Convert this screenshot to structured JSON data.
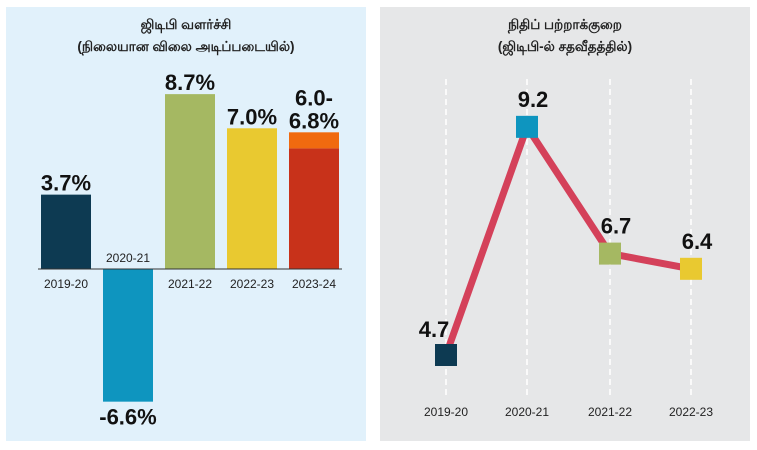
{
  "chart_data": [
    {
      "type": "bar",
      "title": "ஜிடிபி வளர்ச்சி",
      "subtitle": "(நிலையான விலை அடிப்படையில்)",
      "categories": [
        "2019-20",
        "2020-21",
        "2021-22",
        "2022-23",
        "2023-24"
      ],
      "values": [
        3.7,
        -6.6,
        8.7,
        7.0,
        6.0
      ],
      "range_upper": [
        null,
        null,
        null,
        null,
        6.8
      ],
      "data_labels": [
        "3.7%",
        "-6.6%",
        "8.7%",
        "7.0%",
        "6.0-\n6.8%"
      ],
      "colors": [
        "#0d3a52",
        "#0e95bf",
        "#a5b862",
        "#e9c930",
        "#c8321a"
      ],
      "range_color": "#f06a0f",
      "ylim": [
        -7,
        9.5
      ]
    },
    {
      "type": "line",
      "title": "நிதிப் பற்றாக்குறை",
      "subtitle": "(ஜிடிபி-ல் சதவீதத்தில்)",
      "categories": [
        "2019-20",
        "2020-21",
        "2021-22",
        "2022-23"
      ],
      "values": [
        4.7,
        9.2,
        6.7,
        6.4
      ],
      "data_labels": [
        "4.7",
        "9.2",
        "6.7",
        "6.4"
      ],
      "marker_colors": [
        "#0d3a52",
        "#0e95bf",
        "#a5b862",
        "#e9c930"
      ],
      "line_color": "#d4415a",
      "ylim": [
        4,
        9.5
      ]
    }
  ]
}
